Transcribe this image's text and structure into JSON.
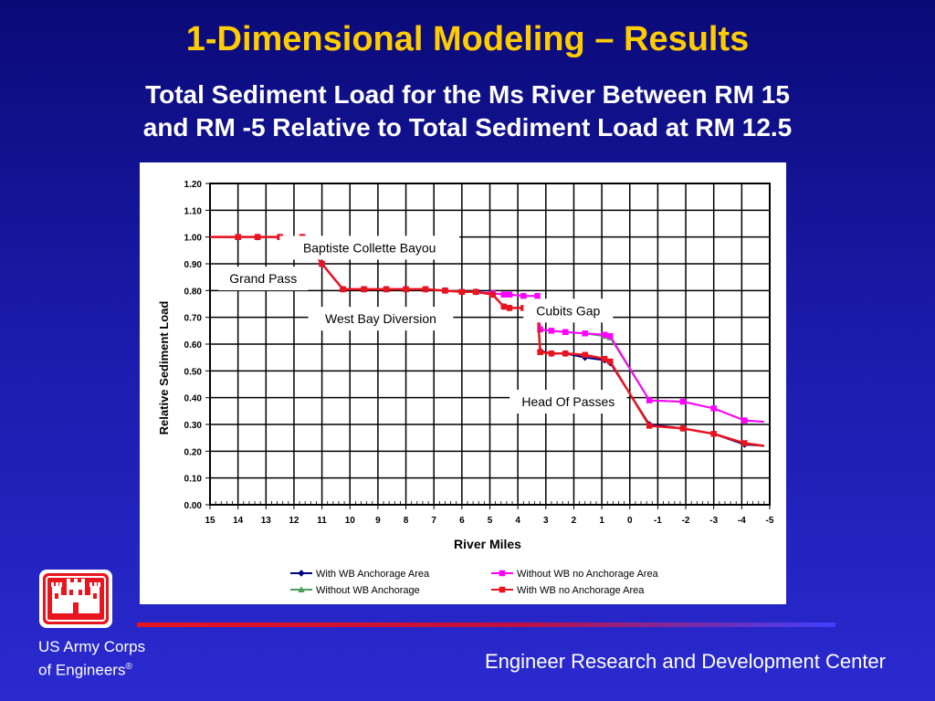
{
  "slide": {
    "title": "1-Dimensional Modeling – Results",
    "subtitle_line1": "Total Sediment Load for the Ms River Between RM 15",
    "subtitle_line2": "and RM -5 Relative to Total Sediment Load at RM 12.5"
  },
  "footer": {
    "org_line1": "US Army Corps",
    "org_line2": "of Engineers",
    "org_mark": "®",
    "center": "Engineer Research and Development Center"
  },
  "colors": {
    "title": "#ffcc00",
    "background_top": "#0a0a78",
    "background_bottom": "#2a2ad0",
    "logo_red": "#e8141e"
  },
  "chart_data": {
    "type": "line",
    "xlabel": "River Miles",
    "ylabel": "Relative Sediment Load",
    "xlim": [
      15,
      -5
    ],
    "ylim": [
      0,
      1.2
    ],
    "x_ticks": [
      "15",
      "14",
      "13",
      "12",
      "11",
      "10",
      "9",
      "8",
      "7",
      "6",
      "5",
      "4",
      "3",
      "2",
      "1",
      "0",
      "-1",
      "-2",
      "-3",
      "-4",
      "-5"
    ],
    "y_ticks": [
      "0.00",
      "0.10",
      "0.20",
      "0.30",
      "0.40",
      "0.50",
      "0.60",
      "0.70",
      "0.80",
      "0.90",
      "1.00",
      "1.10",
      "1.20"
    ],
    "grid": true,
    "legend_position": "bottom",
    "annotations": [
      {
        "text": "Baptiste Collette Bayou",
        "x": 9.3,
        "y": 0.96
      },
      {
        "text": "Grand Pass",
        "x": 13.1,
        "y": 0.845
      },
      {
        "text": "West Bay Diversion",
        "x": 8.9,
        "y": 0.695
      },
      {
        "text": "Cubits Gap",
        "x": 2.2,
        "y": 0.725
      },
      {
        "text": "Head Of Passes",
        "x": 2.2,
        "y": 0.385
      }
    ],
    "series": [
      {
        "name": "With WB Anchorage Area",
        "color": "#000080",
        "marker": "diamond",
        "x": [
          15,
          14,
          13.3,
          12.5,
          11.7,
          11,
          10.25,
          9.5,
          8.7,
          8,
          7.3,
          6.6,
          6,
          5.5,
          4.9,
          4.5,
          4.3,
          3.8,
          3.3,
          3.2,
          2.8,
          2.3,
          1.6,
          0.9,
          0.7,
          -0.7,
          -1.9,
          -3.0,
          -4.1,
          -4.8
        ],
        "y": [
          1.0,
          1.0,
          1.0,
          1.0,
          1.0,
          0.9,
          0.805,
          0.805,
          0.805,
          0.805,
          0.805,
          0.8,
          0.795,
          0.795,
          0.785,
          0.74,
          0.735,
          0.735,
          0.73,
          0.575,
          0.565,
          0.565,
          0.55,
          0.54,
          0.53,
          0.3,
          0.285,
          0.265,
          0.225,
          0.22
        ]
      },
      {
        "name": "Without WB Anchorage",
        "color": "#4aa05a",
        "marker": "triangle",
        "x": [
          15,
          14,
          13.3,
          12.5,
          11.7,
          11,
          10.25,
          9.5,
          8.7,
          8,
          7.3,
          6.6,
          6,
          5.5,
          4.9,
          4.5,
          4.3,
          3.8,
          3.3,
          3.2,
          2.8,
          2.3,
          1.6,
          0.9,
          0.7,
          -0.7,
          -1.9,
          -3.0,
          -4.1,
          -4.8
        ],
        "y": [
          1.0,
          1.0,
          1.0,
          1.0,
          1.0,
          0.9,
          0.805,
          0.805,
          0.805,
          0.805,
          0.805,
          0.8,
          0.795,
          0.795,
          0.79,
          0.785,
          0.785,
          0.78,
          0.78,
          0.655,
          0.65,
          0.645,
          0.64,
          0.63,
          0.625,
          0.39,
          0.385,
          0.36,
          0.315,
          0.31
        ]
      },
      {
        "name": "Without WB no Anchorage Area",
        "color": "#ff00ff",
        "marker": "square",
        "x": [
          15,
          14,
          13.3,
          12.5,
          11.7,
          11,
          10.25,
          9.5,
          8.7,
          8,
          7.3,
          6.6,
          6,
          5.5,
          4.9,
          4.5,
          4.3,
          3.8,
          3.3,
          3.2,
          2.8,
          2.3,
          1.6,
          0.9,
          0.7,
          -0.7,
          -1.9,
          -3.0,
          -4.1,
          -4.8
        ],
        "y": [
          1.0,
          1.0,
          1.0,
          1.0,
          1.0,
          0.9,
          0.805,
          0.805,
          0.805,
          0.805,
          0.805,
          0.8,
          0.795,
          0.795,
          0.79,
          0.785,
          0.785,
          0.78,
          0.78,
          0.655,
          0.65,
          0.645,
          0.64,
          0.635,
          0.63,
          0.39,
          0.385,
          0.36,
          0.315,
          0.31
        ]
      },
      {
        "name": "With WB no Anchorage Area",
        "color": "#e8141e",
        "marker": "square",
        "x": [
          15,
          14,
          13.3,
          12.5,
          11.7,
          11,
          10.25,
          9.5,
          8.7,
          8,
          7.3,
          6.6,
          6,
          5.5,
          4.9,
          4.5,
          4.3,
          3.8,
          3.3,
          3.2,
          2.8,
          2.3,
          1.6,
          0.9,
          0.7,
          -0.7,
          -1.9,
          -3.0,
          -4.1,
          -4.8
        ],
        "y": [
          1.0,
          1.0,
          1.0,
          1.0,
          1.0,
          0.9,
          0.805,
          0.805,
          0.805,
          0.805,
          0.805,
          0.8,
          0.795,
          0.795,
          0.785,
          0.74,
          0.735,
          0.735,
          0.73,
          0.57,
          0.565,
          0.565,
          0.56,
          0.545,
          0.535,
          0.295,
          0.285,
          0.265,
          0.23,
          0.22
        ]
      }
    ]
  }
}
